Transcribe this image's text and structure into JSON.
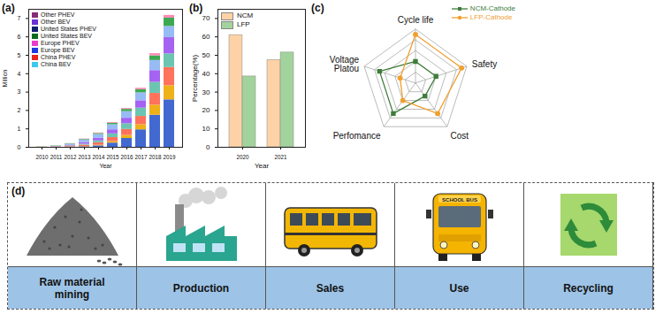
{
  "chart_data": [
    {
      "panel_label": "(a)",
      "type": "bar",
      "stacked": true,
      "x_label": "Year",
      "y_label": "Million",
      "categories": [
        "2010",
        "2011",
        "2012",
        "2013",
        "2014",
        "2015",
        "2016",
        "2017",
        "2018",
        "2019"
      ],
      "ylim": [
        0,
        7.5
      ],
      "yticks": [
        0,
        1,
        2,
        3,
        4,
        5,
        6,
        7
      ],
      "legend": "top-left",
      "series": [
        {
          "name": "China BEV",
          "color": "#3CC8EE",
          "values": [
            0,
            0.01,
            0.02,
            0.03,
            0.08,
            0.23,
            0.48,
            0.95,
            1.74,
            2.58
          ]
        },
        {
          "name": "China PHEV",
          "color": "#E8261E",
          "values": [
            0,
            0,
            0.01,
            0.01,
            0.03,
            0.08,
            0.17,
            0.28,
            0.55,
            0.77
          ]
        },
        {
          "name": "Europe BEV",
          "color": "#1E3AE0",
          "values": [
            0.01,
            0.02,
            0.04,
            0.08,
            0.14,
            0.22,
            0.32,
            0.45,
            0.64,
            0.99
          ]
        },
        {
          "name": "Europe PHEV",
          "color": "#EC3CCB",
          "values": [
            0,
            0,
            0.01,
            0.05,
            0.1,
            0.2,
            0.31,
            0.45,
            0.6,
            0.74
          ]
        },
        {
          "name": "United States BEV",
          "color": "#0C6A1C",
          "values": [
            0,
            0.01,
            0.02,
            0.09,
            0.14,
            0.22,
            0.3,
            0.4,
            0.64,
            0.88
          ]
        },
        {
          "name": "United States PHEV",
          "color": "#101E6E",
          "values": [
            0,
            0.01,
            0.07,
            0.14,
            0.21,
            0.28,
            0.36,
            0.43,
            0.55,
            0.61
          ]
        },
        {
          "name": "Other BEV",
          "color": "#6B2FD6",
          "values": [
            0.01,
            0.02,
            0.02,
            0.03,
            0.05,
            0.08,
            0.12,
            0.17,
            0.25,
            0.45
          ]
        },
        {
          "name": "Other PHEV",
          "color": "#862C78",
          "values": [
            0,
            0,
            0.01,
            0.02,
            0.03,
            0.04,
            0.05,
            0.08,
            0.12,
            0.15
          ]
        }
      ]
    },
    {
      "panel_label": "(b)",
      "type": "bar",
      "x_label": "Year",
      "y_label": "Percentage(%)",
      "categories": [
        "2020",
        "2021"
      ],
      "ylim": [
        0,
        75
      ],
      "yticks": [
        0,
        10,
        20,
        30,
        40,
        50,
        60,
        70
      ],
      "legend": "top-left",
      "series": [
        {
          "name": "NCM",
          "color": "#FDD2A6",
          "values": [
            61,
            47.5
          ]
        },
        {
          "name": "LFP",
          "color": "#A3D39C",
          "values": [
            38.5,
            51.5
          ]
        }
      ]
    },
    {
      "panel_label": "(c)",
      "type": "radar",
      "categories": [
        "Cycle life",
        "Safety",
        "Cost",
        "Perfomance",
        "Voltage Platou"
      ],
      "ylim": [
        0,
        5
      ],
      "yticks": [
        1,
        2,
        3,
        4,
        5
      ],
      "grid": true,
      "tick_labels": false,
      "legend": "top-right",
      "series": [
        {
          "name": "NCM-Cathode",
          "color": "#3E7D3A",
          "marker": "square",
          "values": [
            2,
            2,
            1.5,
            3.5,
            3.5
          ]
        },
        {
          "name": "LFP-Cathode",
          "color": "#F0A030",
          "marker": "circle",
          "values": [
            4.5,
            4.5,
            3.5,
            2,
            1.5
          ]
        }
      ]
    }
  ],
  "diagram": {
    "panel_label": "(d)",
    "stages": [
      {
        "label": "Raw material mining"
      },
      {
        "label": "Production"
      },
      {
        "label": "Sales"
      },
      {
        "label": "Use",
        "icon_text": "SCHOOL BUS"
      },
      {
        "label": "Recycling"
      }
    ]
  }
}
